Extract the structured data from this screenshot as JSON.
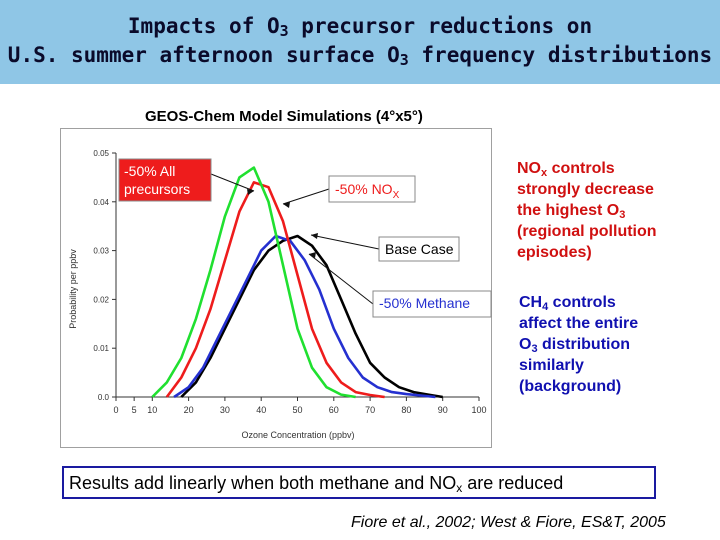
{
  "header": {
    "line1_pre": "Impacts of O",
    "line1_sub": "3",
    "line1_post": " precursor reductions on",
    "line2_pre": "U.S. summer afternoon surface O",
    "line2_sub": "3",
    "line2_post": " frequency distributions"
  },
  "sim_label": "GEOS-Chem Model Simulations (4°x5°)",
  "notes": {
    "nox": {
      "l1_pre": "NO",
      "l1_sub": "x",
      "l1_post": " controls",
      "l2": "strongly decrease",
      "l3_pre": "the highest O",
      "l3_sub": "3",
      "l4": "(regional pollution",
      "l5": "episodes)"
    },
    "ch4": {
      "l1_pre": "CH",
      "l1_sub": "4",
      "l1_post": " controls",
      "l2": "affect the entire",
      "l3_pre": "O",
      "l3_sub": "3",
      "l3_post": " distribution",
      "l4": "similarly",
      "l5": "(background)"
    }
  },
  "result": {
    "pre": "Results add linearly when both methane and NO",
    "sub": "x",
    "post": " are reduced"
  },
  "citation": "Fiore et al., 2002; West & Fiore, ES&T, 2005",
  "colors": {
    "title_band": "#8fc6e6",
    "green": "#20e030",
    "red": "#ee1c1c",
    "blue": "#2530d0",
    "black": "#000000"
  },
  "chart_data": {
    "type": "line",
    "xlabel": "Ozone Concentration (ppbv)",
    "ylabel": "Probability per ppbv",
    "xlim": [
      0,
      100
    ],
    "ylim": [
      0,
      0.05
    ],
    "x_ticks": [
      0,
      5,
      10,
      20,
      30,
      40,
      50,
      60,
      70,
      80,
      90,
      100
    ],
    "y_ticks": [
      0.0,
      0.01,
      0.02,
      0.03,
      0.04,
      0.05
    ],
    "y_tick_labels": [
      "0.0",
      "0.01",
      "0.02",
      "0.03",
      "0.04",
      "0.05"
    ],
    "series": [
      {
        "name": "Base Case",
        "color": "#000000",
        "x": [
          18,
          22,
          26,
          30,
          34,
          38,
          42,
          46,
          50,
          54,
          58,
          62,
          66,
          70,
          74,
          78,
          82,
          86,
          90
        ],
        "y": [
          0.0,
          0.003,
          0.008,
          0.014,
          0.02,
          0.026,
          0.03,
          0.032,
          0.033,
          0.031,
          0.027,
          0.02,
          0.013,
          0.007,
          0.004,
          0.002,
          0.001,
          0.0005,
          0.0
        ]
      },
      {
        "name": "-50% Methane",
        "color": "#2530d0",
        "x": [
          16,
          20,
          24,
          28,
          32,
          36,
          40,
          44,
          48,
          52,
          56,
          60,
          64,
          68,
          72,
          76,
          80,
          84,
          88
        ],
        "y": [
          0.0,
          0.002,
          0.006,
          0.012,
          0.018,
          0.024,
          0.03,
          0.033,
          0.032,
          0.028,
          0.022,
          0.014,
          0.008,
          0.004,
          0.002,
          0.001,
          0.0006,
          0.0003,
          0.0
        ]
      },
      {
        "name": "-50% NOx",
        "color": "#ee1c1c",
        "x": [
          14,
          18,
          22,
          26,
          30,
          34,
          38,
          42,
          46,
          50,
          54,
          58,
          62,
          66,
          70,
          74
        ],
        "y": [
          0.0,
          0.004,
          0.01,
          0.018,
          0.028,
          0.038,
          0.044,
          0.043,
          0.036,
          0.025,
          0.014,
          0.007,
          0.003,
          0.001,
          0.0004,
          0.0
        ]
      },
      {
        "name": "-50% All precursors",
        "color": "#20e030",
        "x": [
          10,
          14,
          18,
          22,
          26,
          30,
          34,
          38,
          42,
          46,
          50,
          54,
          58,
          62,
          66
        ],
        "y": [
          0.0,
          0.003,
          0.008,
          0.016,
          0.026,
          0.037,
          0.045,
          0.047,
          0.04,
          0.027,
          0.014,
          0.006,
          0.002,
          0.0005,
          0.0
        ]
      }
    ],
    "legend_boxes": [
      {
        "series": "-50% All precursors",
        "line1": "-50% All",
        "line2": "precursors",
        "text_color": "#ffffff",
        "box_color": "#ee1c1c"
      },
      {
        "series": "-50% NOx",
        "line1_pre": "-50% NO",
        "line1_sub": "X",
        "text_color": "#ee1c1c",
        "box_color": "#ffffff"
      },
      {
        "series": "Base Case",
        "line1": "Base Case",
        "text_color": "#000000",
        "box_color": "#ffffff"
      },
      {
        "series": "-50% Methane",
        "line1": "-50% Methane",
        "text_color": "#2530d0",
        "box_color": "#ffffff"
      }
    ]
  }
}
